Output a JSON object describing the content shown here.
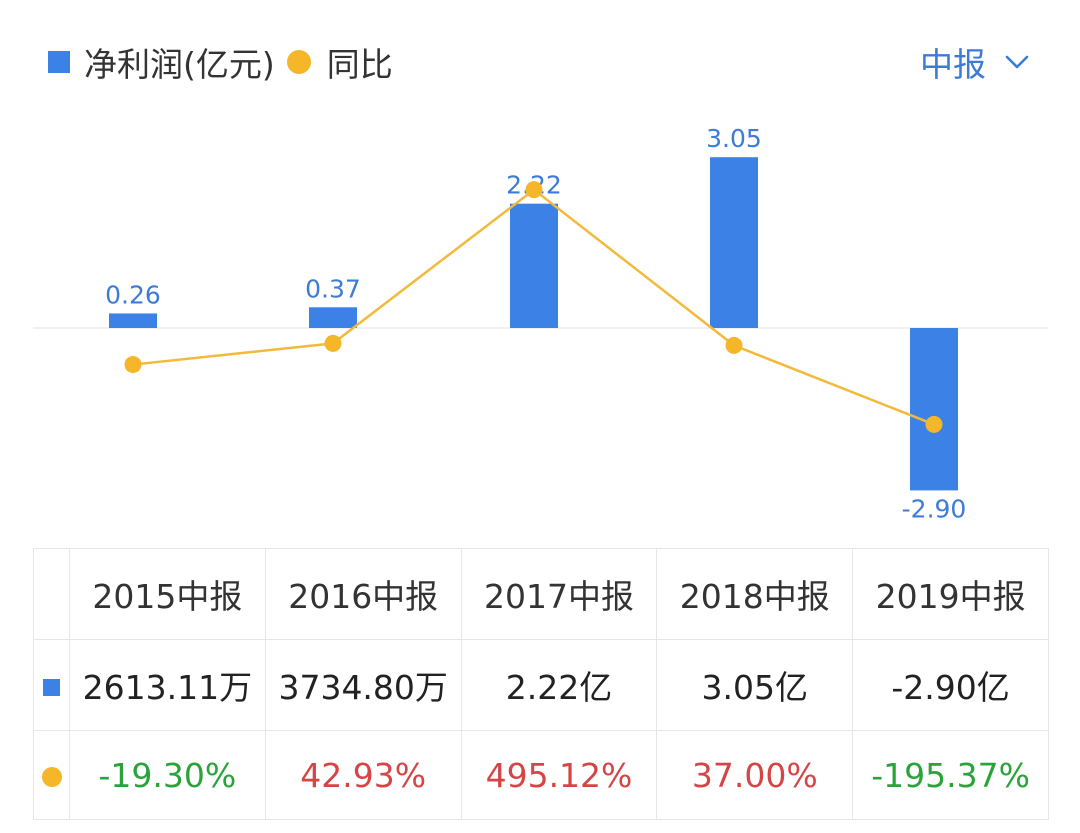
{
  "legend": {
    "bar_label": "净利润(亿元)",
    "line_label": "同比"
  },
  "period_selector": {
    "value": "中报"
  },
  "colors": {
    "bar": "#3c82e6",
    "line": "#f2b93b",
    "dot": "#f5b62a",
    "label": "#3c7bd8",
    "positive": "#d64545",
    "negative": "#2aa33a"
  },
  "chart_data": {
    "type": "bar",
    "categories": [
      "2015中报",
      "2016中报",
      "2017中报",
      "2018中报",
      "2019中报"
    ],
    "series": [
      {
        "name": "净利润(亿元)",
        "type": "bar",
        "values": [
          0.26,
          0.37,
          2.22,
          3.05,
          -2.9
        ],
        "labels": [
          "0.26",
          "0.37",
          "2.22",
          "3.05",
          "-2.90"
        ]
      },
      {
        "name": "同比",
        "type": "line",
        "values": [
          -19.3,
          42.93,
          495.12,
          37.0,
          -195.37
        ]
      }
    ]
  },
  "table": {
    "headers": [
      "2015中报",
      "2016中报",
      "2017中报",
      "2018中报",
      "2019中报"
    ],
    "profit_row": [
      "2613.11万",
      "3734.80万",
      "2.22亿",
      "3.05亿",
      "-2.90亿"
    ],
    "yoy_row": [
      "-19.30%",
      "42.93%",
      "495.12%",
      "37.00%",
      "-195.37%"
    ]
  }
}
